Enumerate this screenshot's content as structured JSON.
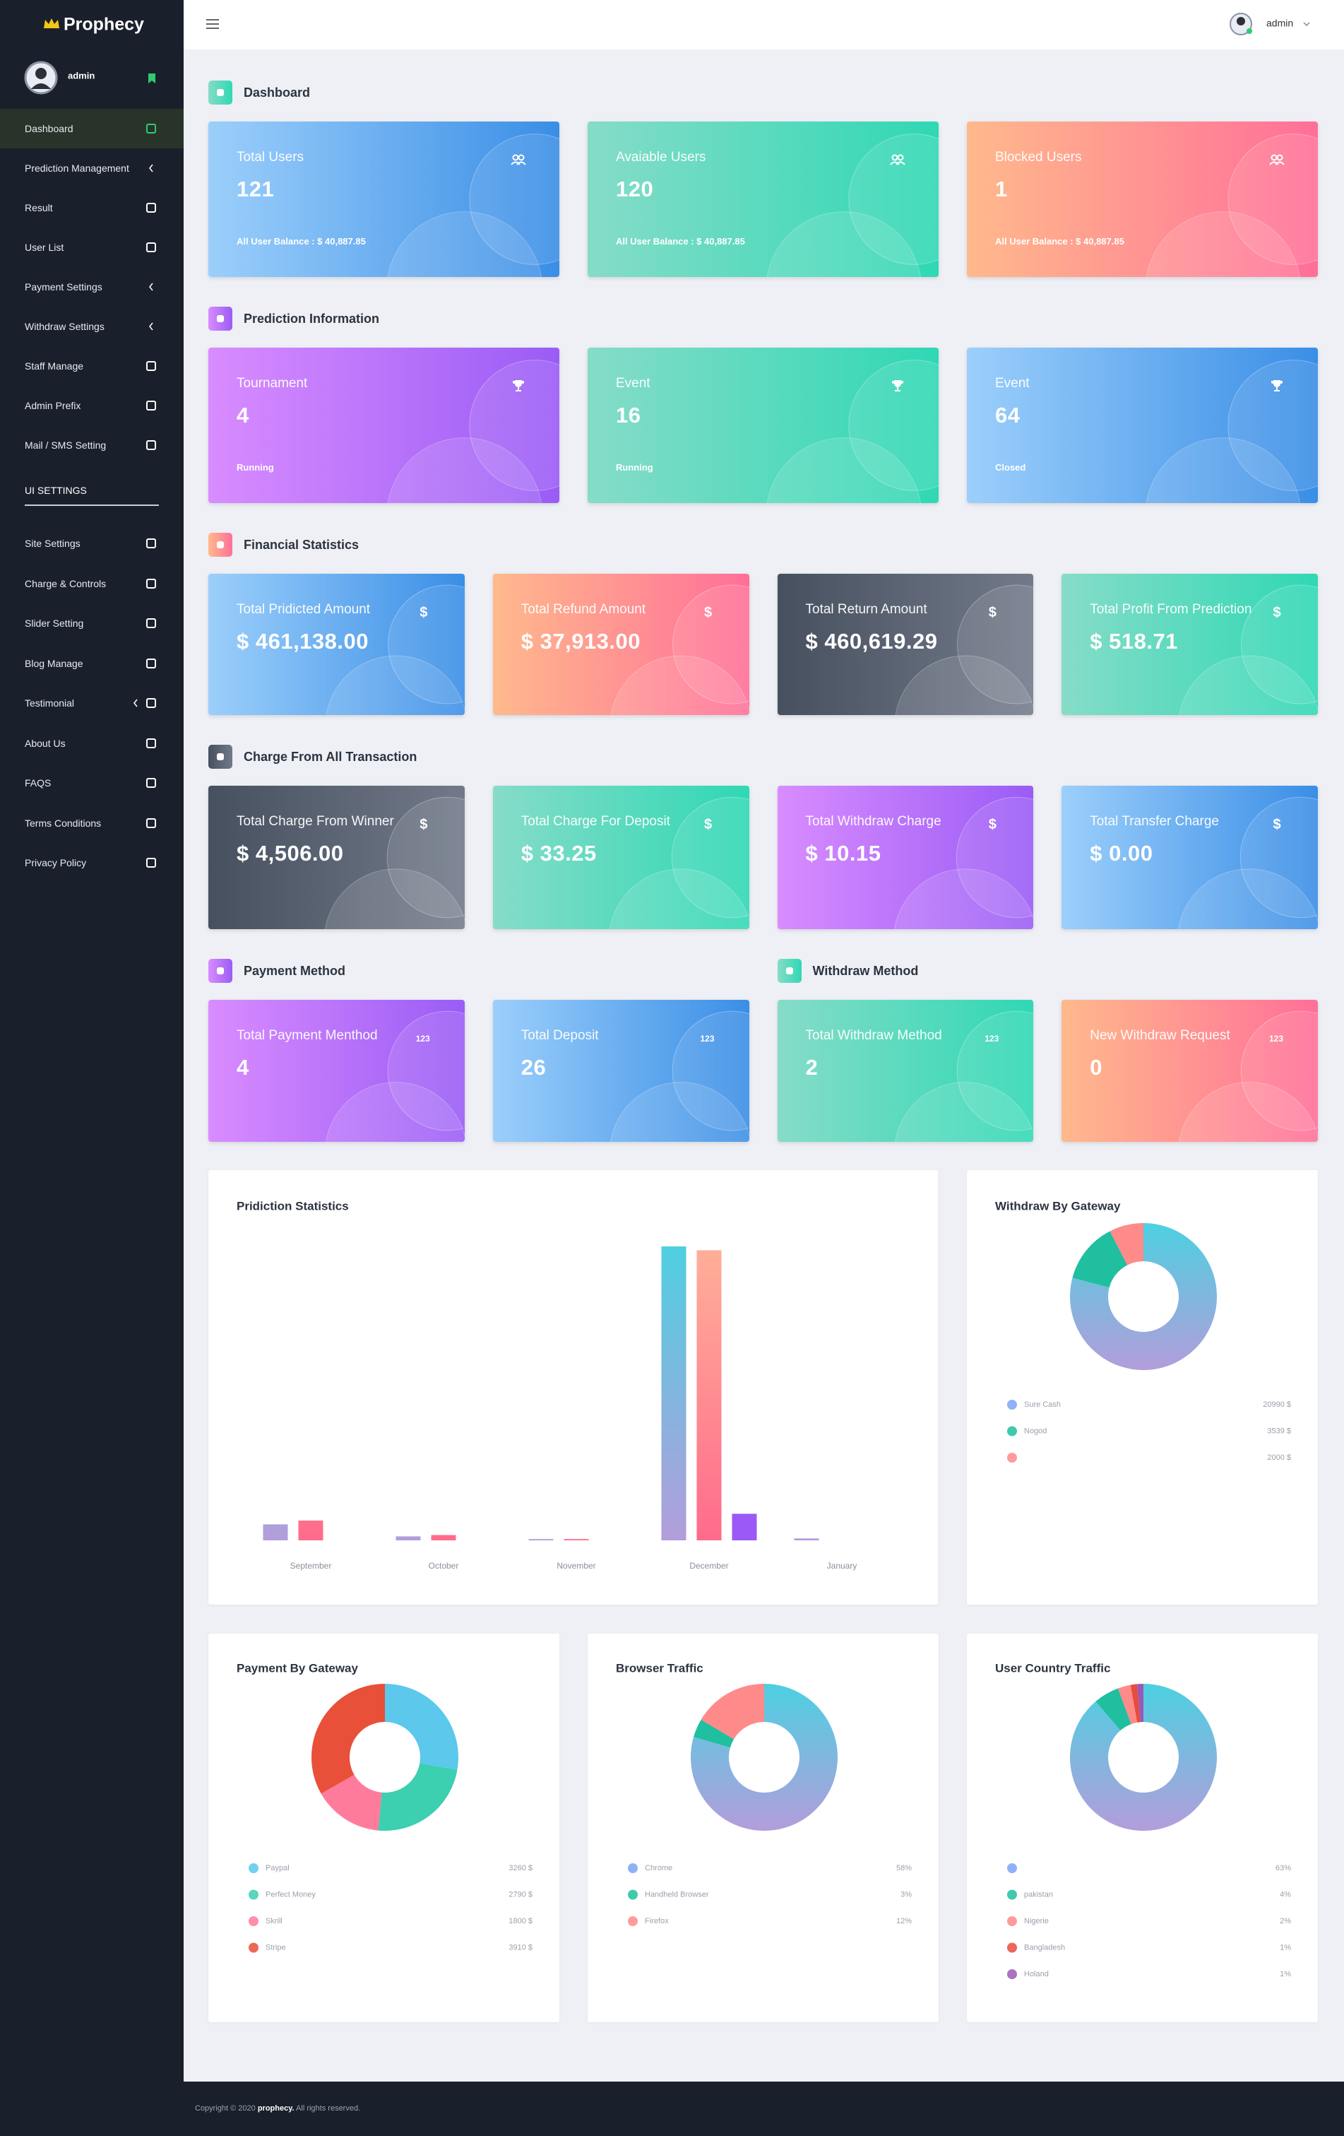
{
  "sidebar": {
    "brand": "Prophecy",
    "user": "admin",
    "menu": [
      "Dashboard",
      "Prediction Management",
      "Result",
      "User List",
      "Payment Settings",
      "Withdraw Settings",
      "Staff Manage",
      "Admin Prefix",
      "Mail / SMS Setting"
    ],
    "section_title": "UI SETTINGS",
    "ui_menu": [
      "Site Settings",
      "Charge & Controls",
      "Slider Setting",
      "Blog Manage",
      "Testimonial",
      "About Us",
      "FAQS",
      "Terms Conditions",
      "Privacy Policy"
    ]
  },
  "header": {
    "user": "admin"
  },
  "sections": [
    {
      "title": "Dashboard",
      "cards": [
        {
          "label": "Total Users",
          "value": "121",
          "footer": "All User Balance : $ 40,887.85"
        },
        {
          "label": "Avaiable Users",
          "value": "120",
          "footer": "All User Balance : $ 40,887.85"
        },
        {
          "label": "Blocked Users",
          "value": "1",
          "footer": "All User Balance : $ 40,887.85"
        }
      ]
    },
    {
      "title": "Prediction Information",
      "cards": [
        {
          "label": "Tournament",
          "value": "4",
          "footer": "Running"
        },
        {
          "label": "Event",
          "value": "16",
          "footer": "Running"
        },
        {
          "label": "Event",
          "value": "64",
          "footer": "Closed"
        }
      ]
    },
    {
      "title": "Financial Statistics",
      "cards": [
        {
          "label": "Total Pridicted Amount",
          "value": "$ 461,138.00",
          "icon": "$"
        },
        {
          "label": "Total Refund Amount",
          "value": "$ 37,913.00",
          "icon": "$"
        },
        {
          "label": "Total Return Amount",
          "value": "$ 460,619.29",
          "icon": "$"
        },
        {
          "label": "Total Profit From Prediction",
          "value": "$ 518.71",
          "icon": "$"
        }
      ]
    },
    {
      "title": "Charge From All Transaction",
      "cards": [
        {
          "label": "Total Charge From Winner",
          "value": "$ 4,506.00",
          "icon": "$"
        },
        {
          "label": "Total Charge For Deposit",
          "value": "$ 33.25",
          "icon": "$"
        },
        {
          "label": "Total Withdraw Charge",
          "value": "$ 10.15",
          "icon": "$"
        },
        {
          "label": "Total Transfer Charge",
          "value": "$ 0.00",
          "icon": "$"
        }
      ]
    },
    {
      "title": "Payment Method",
      "cards": [
        {
          "label": "Total Payment Menthod",
          "value": "4",
          "icon": "123"
        },
        {
          "label": "Total Deposit",
          "value": "26",
          "icon": "123"
        }
      ]
    },
    {
      "title": "Withdraw Method",
      "cards": [
        {
          "label": "Total Withdraw Method",
          "value": "2",
          "icon": "123"
        },
        {
          "label": "New Withdraw Request",
          "value": "0",
          "icon": "123"
        }
      ]
    }
  ],
  "chart_data": [
    {
      "type": "bar",
      "title": "Pridiction Statistics",
      "categories": [
        "September",
        "October",
        "November",
        "December",
        "January"
      ],
      "series": [
        {
          "values": [
            25000,
            6200,
            2000,
            460000,
            3000
          ],
          "gradient": [
            "#4dd0e1",
            "#b39ddb"
          ]
        },
        {
          "values": [
            31000,
            8300,
            2000,
            454000,
            null
          ],
          "gradient": [
            "#ffb199",
            "#ff6b8b"
          ]
        },
        {
          "values": [
            null,
            null,
            null,
            41600,
            null
          ],
          "gradient": [
            "#9b59f6",
            "#9b59f6"
          ]
        }
      ],
      "ylim": [
        0,
        470000
      ]
    },
    {
      "type": "doughnut",
      "title": "Withdraw By Gateway",
      "categories": [
        "Sure Cash",
        "Nogod",
        null
      ],
      "values": [
        20990,
        3539,
        2000
      ],
      "value_labels": [
        "20990 $",
        "3539 $",
        "2000 $"
      ],
      "colors": [
        "#7ba4f4",
        "#1fbf9f",
        "#ff8a8a"
      ],
      "gradient": [
        "#4dd0e1",
        "#b39ddb"
      ]
    },
    {
      "type": "doughnut",
      "title": "Payment By Gateway",
      "categories": [
        "Paypal",
        "Perfect Money",
        "Skrill",
        "Stripe"
      ],
      "values": [
        3260,
        2790,
        1800,
        3910
      ],
      "value_labels": [
        "3260 $",
        "2790 $",
        "1800 $",
        "3910 $"
      ],
      "colors": [
        "#5bc8ec",
        "#3ccfb0",
        "#ff7b9c",
        "#e8503a"
      ]
    },
    {
      "type": "doughnut",
      "title": "Browser Traffic",
      "categories": [
        "Chrome",
        "Handheld Browser",
        "Firefox"
      ],
      "values": [
        58,
        3,
        12
      ],
      "value_labels": [
        "58%",
        "3%",
        "12%"
      ],
      "colors": [
        "#7ba4f4",
        "#1fbf9f",
        "#ff8a8a"
      ],
      "gradient": [
        "#4dd0e1",
        "#b39ddb"
      ]
    },
    {
      "type": "doughnut",
      "title": "User Country Traffic",
      "categories": [
        null,
        "pakistan",
        "Nigerie",
        "Bangladesh",
        "Holand"
      ],
      "values": [
        63,
        4,
        2,
        1,
        1
      ],
      "value_labels": [
        "63%",
        "4%",
        "2%",
        "1%",
        "1%"
      ],
      "colors": [
        "#7ba4f4",
        "#1fbf9f",
        "#ff8a8a",
        "#e74c3c",
        "#9b59b6"
      ],
      "gradient": [
        "#4dd0e1",
        "#b39ddb"
      ]
    }
  ],
  "footer": {
    "text": "Copyright © 2020",
    "brand": "prophecy.",
    "rights": "All rights reserved."
  }
}
